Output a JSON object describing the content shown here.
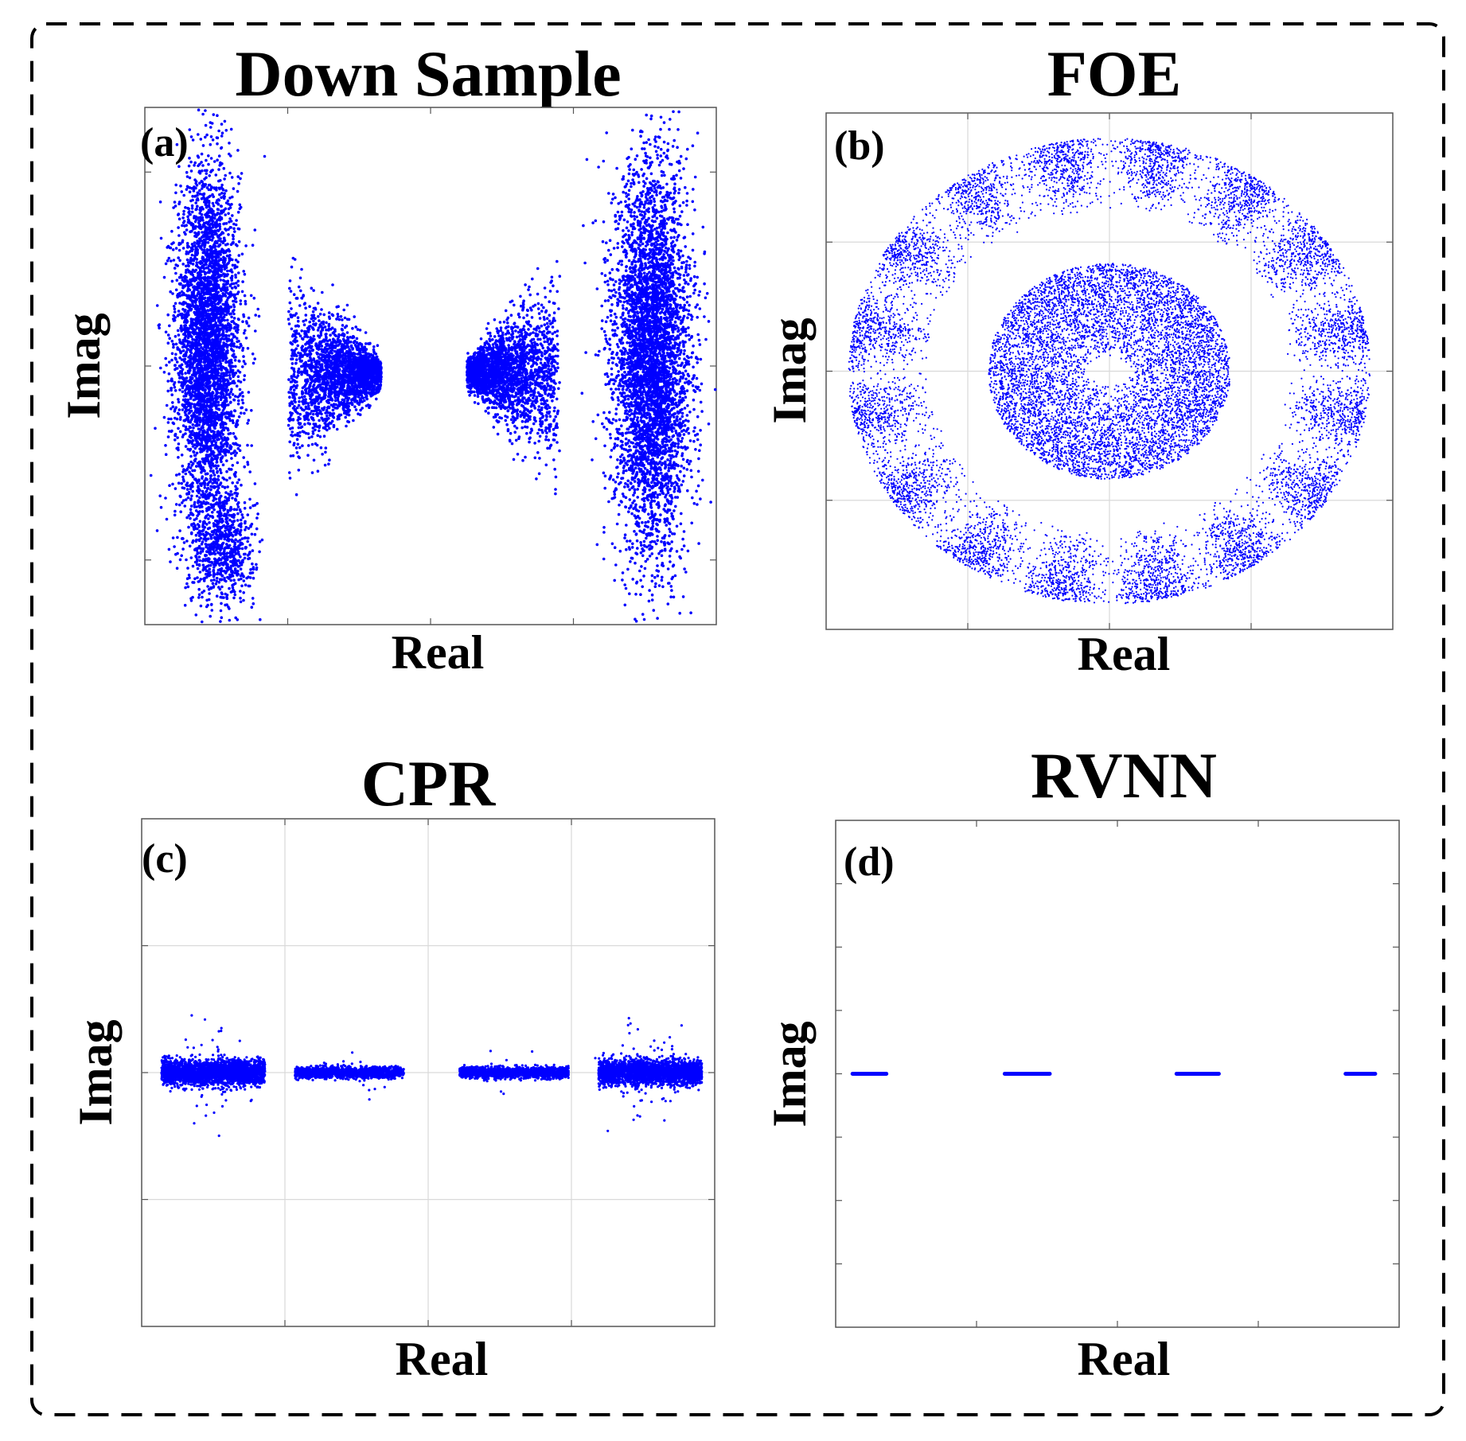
{
  "figure": {
    "accent_color": "#0000ff",
    "frame_color": "#000000"
  },
  "chart_data": [
    {
      "panel": "(a)",
      "type": "scatter",
      "title": "Down Sample",
      "xlabel": "Real",
      "ylabel": "Imag",
      "xlim": [
        -2,
        2
      ],
      "ylim": [
        -2,
        2
      ],
      "grid": false,
      "xticks": [
        -1,
        0,
        1
      ],
      "yticks": [
        -1.5,
        0,
        1.5
      ],
      "clusters": [
        {
          "name": "left-outer",
          "center": [
            -1.56,
            0.15
          ],
          "spread": [
            0.2,
            1.5
          ],
          "shape": "ellipse",
          "points": 4200
        },
        {
          "name": "left-outer-tail",
          "center": [
            -1.45,
            -1.4
          ],
          "spread": [
            0.2,
            0.5
          ],
          "shape": "ellipse",
          "points": 700
        },
        {
          "name": "left-inner",
          "center": [
            -0.67,
            -0.05
          ],
          "spread": [
            0.65,
            0.85
          ],
          "shape": "triangle-right",
          "points": 2300
        },
        {
          "name": "right-inner",
          "center": [
            0.58,
            -0.05
          ],
          "spread": [
            0.65,
            0.85
          ],
          "shape": "triangle-left",
          "points": 2300
        },
        {
          "name": "right-outer",
          "center": [
            1.55,
            0.05
          ],
          "spread": [
            0.24,
            1.65
          ],
          "shape": "ellipse",
          "points": 4800
        }
      ]
    },
    {
      "panel": "(b)",
      "type": "scatter",
      "title": "FOE",
      "xlabel": "Real",
      "ylabel": "Imag",
      "xlim": [
        -2,
        2
      ],
      "ylim": [
        -2,
        2
      ],
      "grid": true,
      "xticks": [
        -1,
        0,
        1
      ],
      "yticks": [
        -1,
        0,
        1
      ],
      "rings": [
        {
          "name": "inner-disc",
          "radius_range": [
            0.12,
            0.88
          ],
          "points": 7000
        },
        {
          "name": "outer-ring",
          "radius_range": [
            1.3,
            1.9
          ],
          "points": 8500,
          "lobes": 16
        }
      ]
    },
    {
      "panel": "(c)",
      "type": "scatter",
      "title": "CPR",
      "xlabel": "Real",
      "ylabel": "Imag",
      "xlim": [
        -2,
        2
      ],
      "ylim": [
        -2,
        2
      ],
      "grid": true,
      "xticks": [
        -1,
        0,
        1
      ],
      "yticks": [
        -1,
        0,
        1
      ],
      "clusters": [
        {
          "name": "c1",
          "center": [
            -1.5,
            0.0
          ],
          "spread": [
            0.38,
            0.08
          ],
          "outliers": 60,
          "points": 2600
        },
        {
          "name": "c2",
          "center": [
            -0.55,
            0.0
          ],
          "spread": [
            0.4,
            0.035
          ],
          "outliers": 20,
          "points": 1700
        },
        {
          "name": "c3",
          "center": [
            0.6,
            0.0
          ],
          "spread": [
            0.4,
            0.035
          ],
          "outliers": 20,
          "points": 1700
        },
        {
          "name": "c4",
          "center": [
            1.55,
            0.0
          ],
          "spread": [
            0.38,
            0.08
          ],
          "outliers": 60,
          "points": 2600
        }
      ]
    },
    {
      "panel": "(d)",
      "type": "scatter",
      "title": "RVNN",
      "xlabel": "Real",
      "ylabel": "Imag",
      "xlim": [
        -2,
        2
      ],
      "ylim": [
        -2,
        2
      ],
      "grid": false,
      "xticks": [
        -1,
        0,
        1
      ],
      "yticks": [
        -1.5,
        -1,
        -0.5,
        0,
        0.5,
        1,
        1.5
      ],
      "segments": [
        {
          "name": "s1",
          "x_range": [
            -1.88,
            -1.64
          ],
          "y": 0.0
        },
        {
          "name": "s2",
          "x_range": [
            -0.8,
            -0.48
          ],
          "y": 0.0
        },
        {
          "name": "s3",
          "x_range": [
            0.42,
            0.72
          ],
          "y": 0.0
        },
        {
          "name": "s4",
          "x_range": [
            1.62,
            1.83
          ],
          "y": 0.0
        }
      ]
    }
  ]
}
